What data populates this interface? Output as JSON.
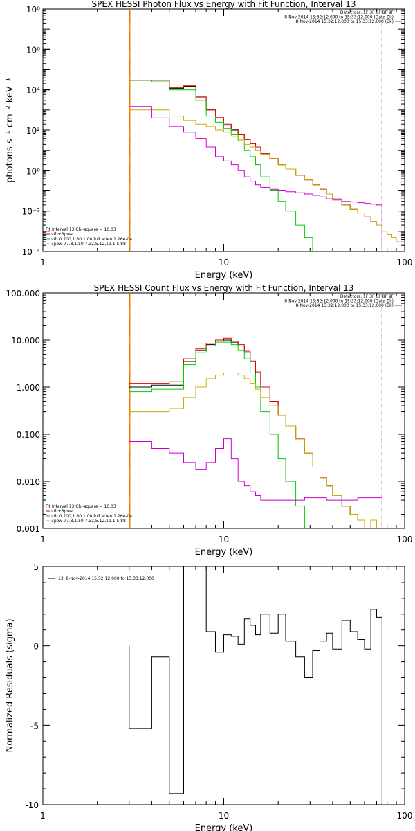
{
  "colors": {
    "red": "#e00000",
    "green": "#00cc00",
    "yellow": "#ccaa00",
    "magenta": "#cc00cc",
    "orange": "#ff8800",
    "black": "#000000"
  },
  "chart_data": [
    {
      "type": "line",
      "title": "SPEX HESSI Photon Flux vs Energy with Fit Function, Interval 13",
      "xlabel": "Energy (keV)",
      "ylabel": "photons s⁻¹ cm⁻² keV⁻¹",
      "xscale": "log",
      "yscale": "log",
      "xlim": [
        1,
        100
      ],
      "ylim": [
        0.0001,
        100000000
      ],
      "x_ticks": [
        "1",
        "10",
        "100"
      ],
      "y_ticks": [
        "10⁻⁴",
        "10⁻²",
        "10⁰",
        "10²",
        "10⁴",
        "10⁶",
        "10⁸"
      ],
      "legend_top": [
        "Detectors: 1F 3F 6F 8F 9F",
        "8-Nov-2014 15:32:12.000 to 15:33:12.000 (Data-Bk)",
        "8-Nov-2014 15:32:12.000 to 15:33:12.000 (Bk)"
      ],
      "legend_bottom": [
        "Fit Interval 13   Chi-square = 10.03",
        "vth+3pow",
        "vth 0.200,1.80,1.00  full atten 1.26e-04",
        "3pow 77.8,1.50,7.32,5.12,19.1,5.88"
      ],
      "edges": [
        3,
        4,
        5,
        6,
        7,
        8,
        9,
        10,
        11,
        12,
        13,
        14,
        15,
        16,
        18,
        20,
        22,
        25,
        28,
        31,
        34,
        37,
        40,
        45,
        50,
        55,
        60,
        65,
        70,
        75,
        80,
        85,
        90,
        100
      ],
      "series": [
        {
          "name": "8-Nov-2014 15:32:12.000 to 15:33:12.000 (Data-Bk)",
          "color": "black",
          "values": [
            30000,
            30000,
            12000,
            15000,
            4000,
            1000,
            400,
            180,
            100,
            60,
            35,
            22,
            15,
            7,
            4,
            2,
            1.2,
            0.6,
            0.35,
            0.2,
            0.12,
            0.07,
            0.04,
            0.02,
            0.012,
            0.008,
            0.005,
            0.003
          ]
        },
        {
          "name": "vth+3pow",
          "color": "red",
          "values": [
            30000,
            30000,
            13000,
            16000,
            4500,
            1000,
            420,
            200,
            110,
            60,
            35,
            22,
            15,
            7,
            4,
            2,
            1.2,
            0.6,
            0.35,
            0.2,
            0.12,
            0.07,
            0.04,
            0.02,
            0.012,
            0.008,
            0.005,
            0.003
          ]
        },
        {
          "name": "vth 0.200,1.80,1.00  full atten 1.26e-04",
          "color": "green",
          "values": [
            30000,
            25000,
            10000,
            10000,
            3000,
            500,
            250,
            120,
            60,
            30,
            10,
            5,
            2,
            0.5,
            0.1,
            0.03,
            0.01,
            0.002,
            0.0005,
            0.0001
          ]
        },
        {
          "name": "3pow 77.8,1.50,7.32,5.12,19.1,5.88",
          "color": "yellow",
          "values": [
            1000,
            1000,
            500,
            300,
            200,
            150,
            100,
            80,
            50,
            35,
            20,
            15,
            10,
            6,
            4,
            2,
            1.2,
            0.6,
            0.35,
            0.2,
            0.12,
            0.07,
            0.04,
            0.02,
            0.012,
            0.008,
            0.005,
            0.003,
            0.002,
            0.001,
            0.0007,
            0.0005,
            0.0003
          ]
        },
        {
          "name": "8-Nov-2014 15:32:12.000 to 15:33:12.000 (Bk)",
          "color": "magenta",
          "values": [
            1500,
            400,
            150,
            80,
            40,
            15,
            5,
            3,
            2,
            1,
            0.5,
            0.3,
            0.2,
            0.15,
            0.12,
            0.1,
            0.09,
            0.08,
            0.07,
            0.06,
            0.05,
            0.04,
            0.035,
            0.03,
            0.028,
            0.026,
            0.024,
            0.022,
            0.02,
            0.0001
          ]
        }
      ]
    },
    {
      "type": "line",
      "title": "SPEX HESSI Count Flux vs Energy with Fit Function, Interval 13",
      "xlabel": "Energy (keV)",
      "ylabel": "",
      "xscale": "log",
      "yscale": "log",
      "xlim": [
        1,
        100
      ],
      "ylim": [
        0.001,
        100
      ],
      "x_ticks": [
        "1",
        "10",
        "100"
      ],
      "y_ticks": [
        "0.001",
        "0.010",
        "0.100",
        "1.000",
        "10.000",
        "100.000"
      ],
      "legend_top": [
        "Detectors: 1F 3F 6F 8F 9F",
        "8-Nov-2014 15:32:12.000 to 15:33:12.000 (Data-Bk)",
        "8-Nov-2014 15:32:12.000 to 15:33:12.000 (Bk)"
      ],
      "legend_bottom": [
        "Fit Interval 13   Chi-square = 10.03",
        "vth+3pow",
        "vth 0.200,1.80,1.00  full atten 1.26e-04",
        "3pow 77.8,1.50,7.32,5.12,19.1,5.88"
      ],
      "edges": [
        3,
        4,
        5,
        6,
        7,
        8,
        9,
        10,
        11,
        12,
        13,
        14,
        15,
        16,
        18,
        20,
        22,
        25,
        28,
        31,
        34,
        37,
        40,
        45,
        50,
        55,
        60,
        65,
        70,
        75
      ],
      "series": [
        {
          "name": "8-Nov-2014 15:32:12.000 to 15:33:12.000 (Data-Bk)",
          "color": "black",
          "values": [
            1.0,
            1.1,
            1.1,
            3.5,
            6.0,
            8.0,
            9.5,
            10.0,
            9.0,
            7.5,
            5.5,
            3.5,
            2.0,
            1.0,
            0.5,
            0.25,
            0.15,
            0.08,
            0.04,
            0.02,
            0.012,
            0.008,
            0.005,
            0.003,
            0.002,
            0.0015,
            0.001,
            0.0015,
            0.001
          ]
        },
        {
          "name": "vth+3pow",
          "color": "red",
          "values": [
            1.2,
            1.2,
            1.3,
            4.0,
            6.5,
            8.5,
            10.0,
            11.0,
            9.5,
            8.0,
            5.8,
            3.6,
            2.1,
            1.0,
            0.5,
            0.25,
            0.15,
            0.08,
            0.04,
            0.02,
            0.012,
            0.008,
            0.005,
            0.003,
            0.002,
            0.0015,
            0.001,
            0.0015,
            0.001
          ]
        },
        {
          "name": "vth 0.200,1.80,1.00  full atten 1.26e-04",
          "color": "green",
          "values": [
            0.8,
            0.9,
            0.9,
            3.0,
            5.5,
            7.5,
            9.0,
            9.0,
            8.0,
            6.0,
            4.0,
            2.0,
            1.0,
            0.3,
            0.1,
            0.03,
            0.01,
            0.003,
            0.001
          ]
        },
        {
          "name": "3pow 77.8,1.50,7.32,5.12,19.1,5.88",
          "color": "yellow",
          "values": [
            0.3,
            0.3,
            0.35,
            0.6,
            1.0,
            1.5,
            1.8,
            2.0,
            2.0,
            1.8,
            1.5,
            1.2,
            0.9,
            0.6,
            0.4,
            0.25,
            0.15,
            0.08,
            0.04,
            0.02,
            0.012,
            0.008,
            0.005,
            0.003,
            0.002,
            0.0015,
            0.001,
            0.0015,
            0.001
          ]
        },
        {
          "name": "8-Nov-2014 15:32:12.000 to 15:33:12.000 (Bk)",
          "color": "magenta",
          "values": [
            0.07,
            0.05,
            0.04,
            0.025,
            0.018,
            0.025,
            0.05,
            0.08,
            0.03,
            0.01,
            0.008,
            0.006,
            0.005,
            0.004,
            0.004,
            0.004,
            0.004,
            0.004,
            0.0045,
            0.0045,
            0.0045,
            0.004,
            0.004,
            0.004,
            0.004,
            0.0045,
            0.0045,
            0.0045,
            0.0045
          ]
        }
      ]
    },
    {
      "type": "line",
      "title": "",
      "xlabel": "Energy (keV)",
      "ylabel": "Normalized Residuals (sigma)",
      "xscale": "log",
      "yscale": "linear",
      "xlim": [
        1,
        100
      ],
      "ylim": [
        -10,
        5
      ],
      "x_ticks": [
        "1",
        "10",
        "100"
      ],
      "y_ticks": [
        "-10",
        "-5",
        "0",
        "5"
      ],
      "legend_top": [
        "13,  8-Nov-2014 15:32:12.000 to 15:33:12.000"
      ],
      "edges": [
        3,
        4,
        5,
        6,
        7,
        8,
        9,
        10,
        11,
        12,
        13,
        14,
        15,
        16,
        18,
        20,
        22,
        25,
        28,
        31,
        34,
        37,
        40,
        45,
        50,
        55,
        60,
        65,
        70,
        75
      ],
      "series": [
        {
          "name": "13,  8-Nov-2014 15:32:12.000 to 15:33:12.000",
          "color": "black",
          "values": [
            -5.2,
            -0.7,
            -9.3,
            5.0,
            5.1,
            0.9,
            -0.4,
            0.7,
            0.6,
            0.1,
            1.7,
            1.3,
            0.7,
            2.0,
            0.8,
            2.0,
            0.3,
            -0.7,
            -2.0,
            -0.3,
            0.3,
            0.8,
            -0.2,
            1.6,
            0.9,
            0.4,
            -0.2,
            2.3,
            1.8
          ]
        }
      ]
    }
  ]
}
